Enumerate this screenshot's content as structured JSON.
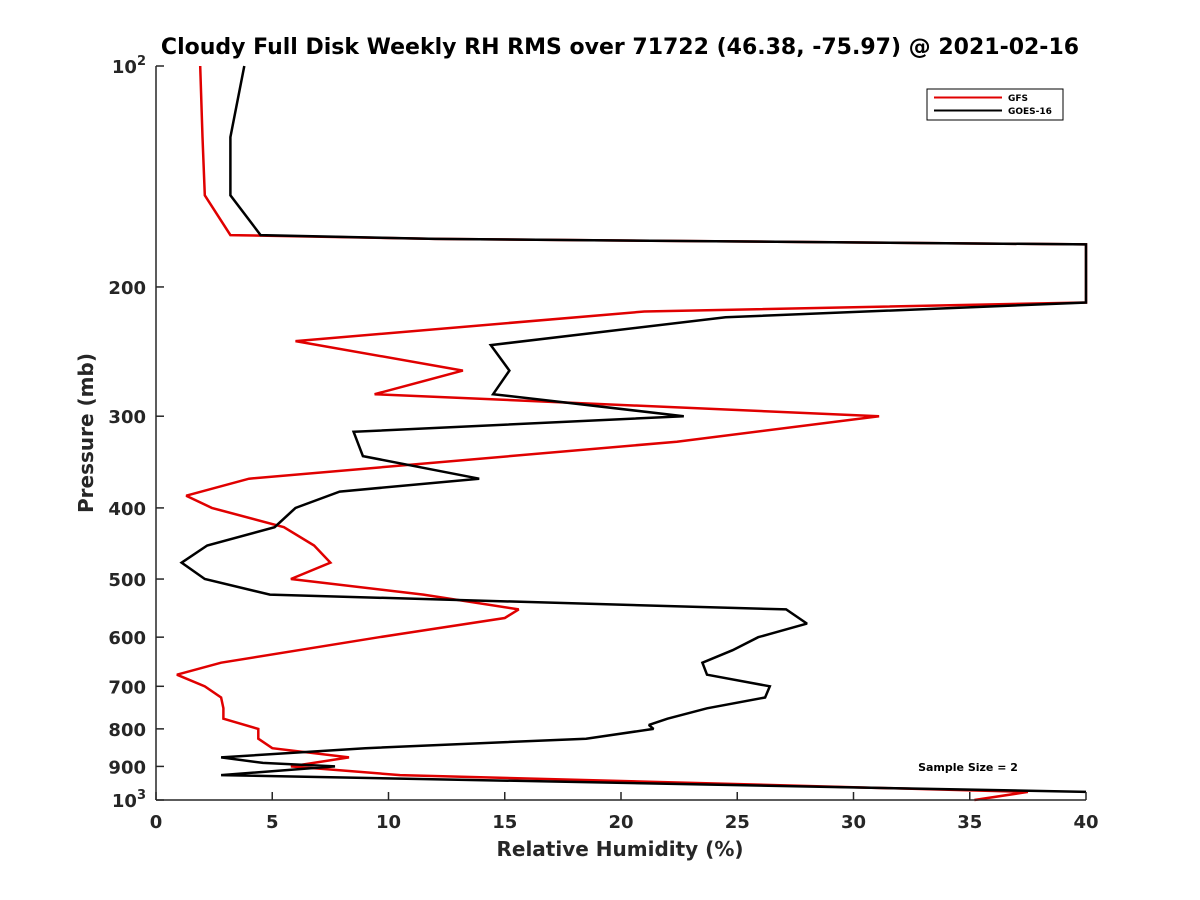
{
  "chart_data": {
    "type": "line",
    "title": "Cloudy Full Disk Weekly RH RMS over 71722 (46.38, -75.97) @ 2021-02-16",
    "xlabel": "Relative Humidity (%)",
    "ylabel": "Pressure (mb)",
    "xlim": [
      0,
      40
    ],
    "ylim": [
      100,
      1000
    ],
    "yscale": "log",
    "y_direction": "reverse",
    "grid": false,
    "legend_position": "top-right",
    "x_ticks": [
      0,
      5,
      10,
      15,
      20,
      25,
      30,
      35,
      40
    ],
    "x_tick_labels": [
      "0",
      "5",
      "10",
      "15",
      "20",
      "25",
      "30",
      "35",
      "40"
    ],
    "y_ticks": [
      100,
      200,
      300,
      400,
      500,
      600,
      700,
      800,
      900,
      1000
    ],
    "y_tick_labels": [
      {
        "base": "10",
        "exp": "2"
      },
      {
        "text": "200"
      },
      {
        "text": "300"
      },
      {
        "text": "400"
      },
      {
        "text": "500"
      },
      {
        "text": "600"
      },
      {
        "text": "700"
      },
      {
        "text": "800"
      },
      {
        "text": "900"
      },
      {
        "base": "10",
        "exp": "3"
      }
    ],
    "annotation": "Sample Size = 2",
    "series": [
      {
        "name": "GFS",
        "color": "#e00000",
        "points": [
          [
            1.9,
            100
          ],
          [
            2.0,
            125
          ],
          [
            2.1,
            150
          ],
          [
            3.2,
            170
          ],
          [
            12,
            172
          ],
          [
            40,
            175
          ],
          [
            40,
            180
          ],
          [
            40,
            210
          ],
          [
            21,
            216
          ],
          [
            6.0,
            237
          ],
          [
            13.2,
            260
          ],
          [
            9.4,
            280
          ],
          [
            31.1,
            300
          ],
          [
            22.4,
            325
          ],
          [
            4.0,
            365
          ],
          [
            1.3,
            385
          ],
          [
            2.4,
            400
          ],
          [
            5.5,
            425
          ],
          [
            6.8,
            450
          ],
          [
            7.5,
            475
          ],
          [
            5.8,
            500
          ],
          [
            11.5,
            525
          ],
          [
            15.6,
            550
          ],
          [
            15.0,
            565
          ],
          [
            9.6,
            600
          ],
          [
            2.8,
            650
          ],
          [
            0.9,
            675
          ],
          [
            2.1,
            700
          ],
          [
            2.8,
            725
          ],
          [
            2.9,
            750
          ],
          [
            2.9,
            775
          ],
          [
            4.4,
            800
          ],
          [
            4.4,
            825
          ],
          [
            5.0,
            850
          ],
          [
            8.3,
            875
          ],
          [
            5.8,
            900
          ],
          [
            10.5,
            925
          ],
          [
            37.5,
            975
          ],
          [
            35.2,
            1000
          ]
        ]
      },
      {
        "name": "GOES-16",
        "color": "#000000",
        "points": [
          [
            3.8,
            100
          ],
          [
            3.2,
            125
          ],
          [
            3.2,
            150
          ],
          [
            4.5,
            170
          ],
          [
            12,
            172
          ],
          [
            40,
            175
          ],
          [
            40,
            180
          ],
          [
            40,
            210
          ],
          [
            24.5,
            220
          ],
          [
            14.4,
            240
          ],
          [
            15.2,
            260
          ],
          [
            14.5,
            280
          ],
          [
            22.7,
            300
          ],
          [
            8.5,
            315
          ],
          [
            8.9,
            340
          ],
          [
            13.9,
            365
          ],
          [
            7.9,
            380
          ],
          [
            6.0,
            400
          ],
          [
            5.1,
            425
          ],
          [
            2.2,
            450
          ],
          [
            1.1,
            475
          ],
          [
            2.1,
            500
          ],
          [
            4.9,
            525
          ],
          [
            27.1,
            550
          ],
          [
            28.0,
            575
          ],
          [
            25.9,
            600
          ],
          [
            24.8,
            625
          ],
          [
            23.5,
            650
          ],
          [
            23.7,
            675
          ],
          [
            26.4,
            700
          ],
          [
            26.2,
            725
          ],
          [
            23.7,
            750
          ],
          [
            22.0,
            775
          ],
          [
            21.2,
            790
          ],
          [
            21.4,
            800
          ],
          [
            18.5,
            825
          ],
          [
            9.0,
            850
          ],
          [
            2.8,
            875
          ],
          [
            4.6,
            890
          ],
          [
            7.7,
            900
          ],
          [
            2.8,
            925
          ],
          [
            40,
            975
          ]
        ]
      }
    ]
  }
}
